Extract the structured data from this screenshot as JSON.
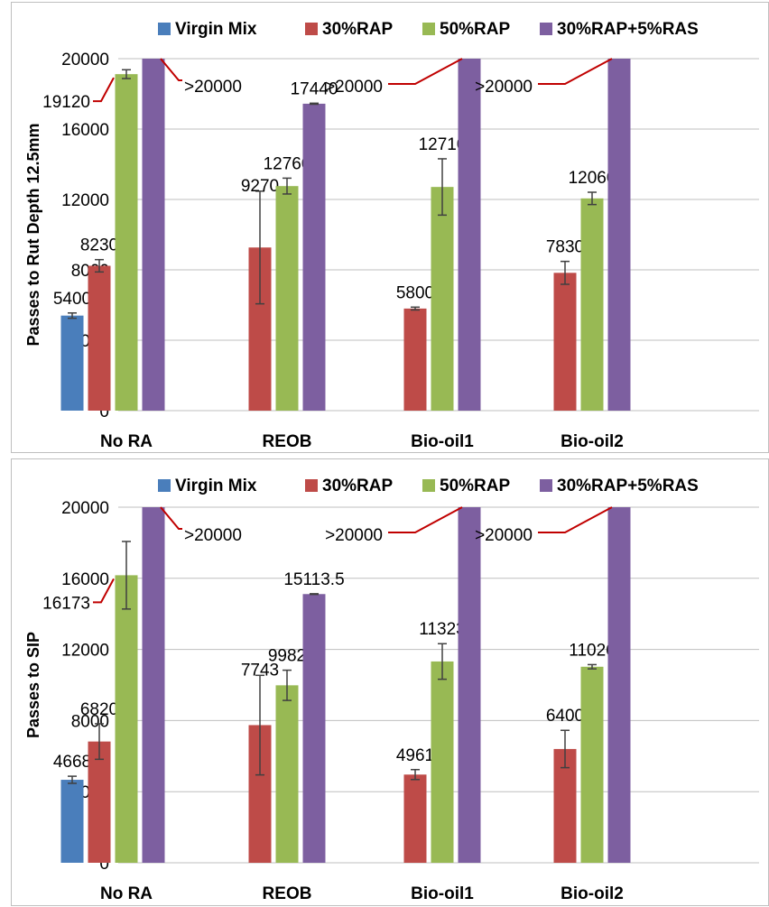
{
  "chart_data": [
    {
      "type": "bar",
      "ylabel": "Passes to Rut Depth 12.5mm",
      "ylim": [
        0,
        20000
      ],
      "yticks": [
        "0",
        "4000",
        "8000",
        "12000",
        "16000",
        "20000"
      ],
      "categories": [
        "No RA",
        "REOB",
        "Bio-oil1",
        "Bio-oil2"
      ],
      "legend_position": "top",
      "grid": "horizontal",
      "series": [
        {
          "name": "Virgin Mix",
          "color": "#4a7ebb",
          "values": [
            5400,
            null,
            null,
            null
          ],
          "labels": [
            "5400",
            null,
            null,
            null
          ],
          "errors": [
            150,
            null,
            null,
            null
          ]
        },
        {
          "name": "30%RAP",
          "color": "#be4b48",
          "values": [
            8230,
            9270,
            5800,
            7830
          ],
          "labels": [
            "8230",
            "9270",
            "5800",
            "7830"
          ],
          "errors": [
            350,
            3200,
            80,
            650
          ]
        },
        {
          "name": "50%RAP",
          "color": "#98b954",
          "values": [
            19120,
            12760,
            12710,
            12060
          ],
          "labels": [
            "19120",
            "12760",
            "12710",
            "12060"
          ],
          "errors": [
            250,
            450,
            1600,
            350
          ]
        },
        {
          "name": "30%RAP+5%RAS",
          "color": "#7d5fa0",
          "values": [
            20000,
            17440,
            20000,
            20000
          ],
          "labels": [
            ">20000",
            "17440",
            ">20000",
            ">20000"
          ],
          "errors": [
            null,
            30,
            null,
            null
          ]
        }
      ]
    },
    {
      "type": "bar",
      "ylabel": "Passes to SIP",
      "ylim": [
        0,
        20000
      ],
      "yticks": [
        "0",
        "4000",
        "8000",
        "12000",
        "16000",
        "20000"
      ],
      "categories": [
        "No RA",
        "REOB",
        "Bio-oil1",
        "Bio-oil2"
      ],
      "legend_position": "top",
      "grid": "horizontal",
      "series": [
        {
          "name": "Virgin Mix",
          "color": "#4a7ebb",
          "values": [
            4668,
            null,
            null,
            null
          ],
          "labels": [
            "4668",
            null,
            null,
            null
          ],
          "errors": [
            200,
            null,
            null,
            null
          ]
        },
        {
          "name": "30%RAP",
          "color": "#be4b48",
          "values": [
            6820,
            7743,
            4961,
            6400
          ],
          "labels": [
            "6820",
            "7743",
            "4961",
            "6400"
          ],
          "errors": [
            1000,
            2800,
            280,
            1050
          ]
        },
        {
          "name": "50%RAP",
          "color": "#98b954",
          "values": [
            16173,
            9982,
            11323,
            11026
          ],
          "labels": [
            "16173",
            "9982",
            "11323",
            "11026"
          ],
          "errors": [
            1900,
            850,
            1000,
            120
          ]
        },
        {
          "name": "30%RAP+5%RAS",
          "color": "#7d5fa0",
          "values": [
            20000,
            15113.5,
            20000,
            20000
          ],
          "labels": [
            ">20000",
            "15113.5",
            ">20000",
            ">20000"
          ],
          "errors": [
            null,
            20,
            null,
            null
          ]
        }
      ]
    }
  ]
}
